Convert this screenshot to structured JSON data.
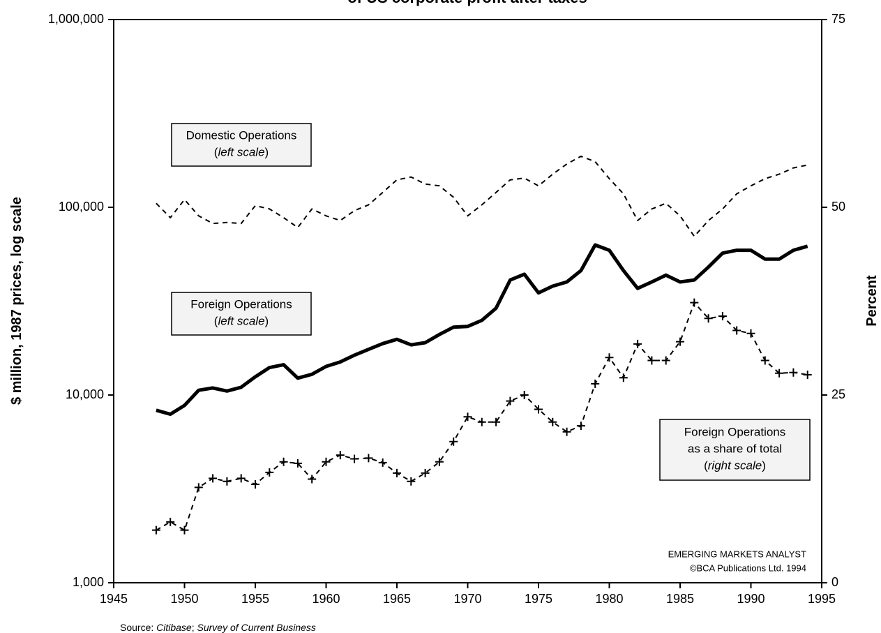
{
  "chart_data": {
    "type": "line",
    "title": "of US corporate profit after taxes",
    "ylabel": "$ million, 1987 prices, log scale",
    "y2label": "Percent",
    "log_y": true,
    "grid": false,
    "x": [
      1948,
      1949,
      1950,
      1951,
      1952,
      1953,
      1954,
      1955,
      1956,
      1957,
      1958,
      1959,
      1960,
      1961,
      1962,
      1963,
      1964,
      1965,
      1966,
      1967,
      1968,
      1969,
      1970,
      1971,
      1972,
      1973,
      1974,
      1975,
      1976,
      1977,
      1978,
      1979,
      1980,
      1981,
      1982,
      1983,
      1984,
      1985,
      1986,
      1987,
      1988,
      1989,
      1990,
      1991,
      1992,
      1993,
      1994
    ],
    "xlim": [
      1945,
      1995
    ],
    "xticks": [
      1945,
      1950,
      1955,
      1960,
      1965,
      1970,
      1975,
      1980,
      1985,
      1990,
      1995
    ],
    "ylim": [
      1000,
      1000000
    ],
    "yticks": [
      {
        "value": 1000,
        "label": "1,000"
      },
      {
        "value": 10000,
        "label": "10,000"
      },
      {
        "value": 100000,
        "label": "100,000"
      },
      {
        "value": 1000000,
        "label": "1,000,000"
      }
    ],
    "y2lim": [
      0,
      75
    ],
    "y2ticks": [
      0,
      25,
      50,
      75
    ],
    "series": [
      {
        "name": "Domestic Operations",
        "color": "#000000",
        "line_style": "dashed",
        "width": 2,
        "values": [
          105000,
          88000,
          110000,
          90000,
          82000,
          83000,
          82000,
          102000,
          98000,
          88000,
          78000,
          98000,
          90000,
          85000,
          96000,
          103000,
          120000,
          140000,
          145000,
          133000,
          130000,
          113000,
          90000,
          103000,
          120000,
          140000,
          143000,
          130000,
          150000,
          170000,
          187000,
          175000,
          142000,
          118000,
          85000,
          98000,
          105000,
          90000,
          70000,
          85000,
          98000,
          118000,
          130000,
          142000,
          150000,
          162000,
          168000
        ]
      },
      {
        "name": "Foreign Operations",
        "color": "#000000",
        "line_style": "solid",
        "width": 5,
        "values": [
          8300,
          7900,
          8800,
          10600,
          10900,
          10500,
          11000,
          12500,
          14000,
          14500,
          12300,
          12900,
          14200,
          15000,
          16300,
          17500,
          18800,
          19800,
          18500,
          19000,
          21000,
          23000,
          23200,
          25000,
          29000,
          41000,
          44000,
          35000,
          38000,
          40000,
          46000,
          63000,
          59000,
          46000,
          37000,
          40000,
          43500,
          40000,
          41000,
          48000,
          57000,
          59000,
          59000,
          53000,
          53000,
          59000,
          62000
        ]
      },
      {
        "name": "Foreign Operations as a share of total",
        "color": "#000000",
        "line_style": "dashed",
        "width": 2,
        "marker": "+",
        "axis": "y2",
        "values": [
          7.0,
          8.1,
          7.0,
          12.7,
          13.9,
          13.5,
          13.9,
          13.1,
          14.7,
          16.1,
          15.9,
          13.8,
          16.1,
          17.0,
          16.5,
          16.6,
          16.0,
          14.6,
          13.5,
          14.6,
          16.1,
          18.8,
          22.1,
          21.4,
          21.4,
          24.2,
          25.0,
          23.1,
          21.4,
          20.1,
          20.9,
          26.5,
          30.0,
          27.3,
          31.8,
          29.6,
          29.6,
          32.1,
          37.3,
          35.2,
          35.5,
          33.6,
          33.2,
          29.6,
          27.9,
          28.0,
          27.7
        ]
      }
    ],
    "annotations": [
      {
        "lines": [
          [
            {
              "text": "Domestic Operations"
            }
          ],
          [
            {
              "text": "("
            },
            {
              "text": "left scale",
              "italic": true
            },
            {
              "text": ")"
            }
          ]
        ]
      },
      {
        "lines": [
          [
            {
              "text": "Foreign Operations"
            }
          ],
          [
            {
              "text": "("
            },
            {
              "text": "left scale",
              "italic": true
            },
            {
              "text": ")"
            }
          ]
        ]
      },
      {
        "lines": [
          [
            {
              "text": "Foreign Operations"
            }
          ],
          [
            {
              "text": "as a share of total"
            }
          ],
          [
            {
              "text": "("
            },
            {
              "text": "right scale",
              "italic": true
            },
            {
              "text": ")"
            }
          ]
        ]
      }
    ],
    "credits": [
      "EMERGING MARKETS ANALYST",
      "©BCA Publications Ltd. 1994"
    ],
    "source": [
      {
        "text": "Source: "
      },
      {
        "text": "Citibase",
        "italic": true
      },
      {
        "text": ";  "
      },
      {
        "text": "Survey of Current Business",
        "italic": true
      }
    ]
  }
}
